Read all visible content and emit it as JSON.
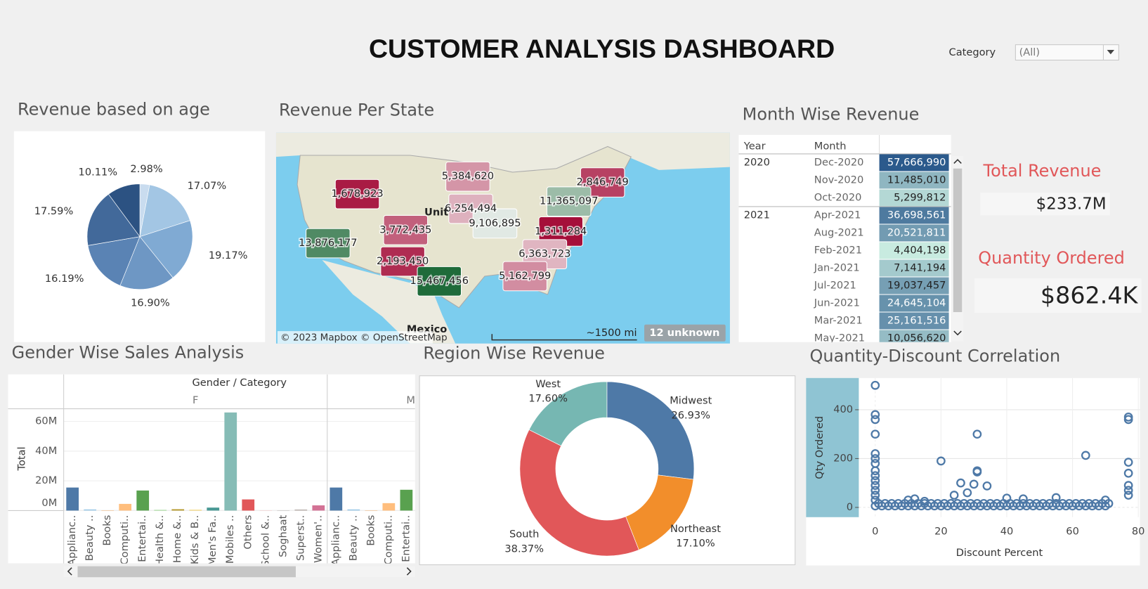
{
  "header": {
    "title": "CUSTOMER ANALYSIS DASHBOARD",
    "filter_label": "Category",
    "filter_value": "(All)"
  },
  "chart_data": [
    {
      "type": "pie",
      "title": "Revenue based on age",
      "values": [
        2.98,
        17.07,
        19.17,
        16.9,
        16.19,
        17.59,
        10.11
      ],
      "value_labels": [
        "2.98%",
        "17.07%",
        "19.17%",
        "16.90%",
        "16.19%",
        "17.59%",
        "10.11%"
      ],
      "colors": [
        "#c9dcef",
        "#a3c6e4",
        "#80aad3",
        "#6e97c4",
        "#5a83b4",
        "#42699a",
        "#2c5282"
      ]
    },
    {
      "type": "map",
      "title": "Revenue Per State",
      "values": [
        5384620,
        1678923,
        2846749,
        11365097,
        6254494,
        9106895,
        13876177,
        3772435,
        1311284,
        6363723,
        2193450,
        15467456,
        5162799
      ],
      "value_labels": [
        "5,384,620",
        "1,678,923",
        "2,846,749",
        "11,365,097",
        "6,254,494",
        "9,106,895",
        "13,876,177",
        "3,772,435",
        "1,311,284",
        "6,363,723",
        "2,193,450",
        "15,467,456",
        "5,162,799"
      ],
      "color_range": [
        "#a50f3a",
        "#f7f7f7",
        "#1f6b3a"
      ],
      "place_labels": [
        "Unit",
        "Mexico"
      ],
      "attribution": "© 2023 Mapbox © OpenStreetMap",
      "scale_label": "~1500 mi",
      "unknown_label": "12 unknown"
    },
    {
      "type": "bar",
      "title": "Gender Wise Sales Analysis",
      "header": "Gender / Category",
      "y_label": "Total",
      "ylim": [
        0,
        68000000
      ],
      "yticks": [
        {
          "value": 0,
          "label": "0M"
        },
        {
          "value": 20000000,
          "label": "20M"
        },
        {
          "value": 40000000,
          "label": "40M"
        },
        {
          "value": 60000000,
          "label": "60M"
        }
      ],
      "grid": true,
      "facets": [
        {
          "name": "F",
          "categories": [
            "Applianc..",
            "Beauty ..",
            "Books",
            "Computi..",
            "Entertai..",
            "Health &..",
            "Home &..",
            "Kids & B..",
            "Men's Fa..",
            "Mobiles ..",
            "Others",
            "School &..",
            "Soghaat",
            "Superst..",
            "Women'.."
          ],
          "values": [
            15500000,
            800000,
            150000,
            4500000,
            13500000,
            400000,
            900000,
            500000,
            2000000,
            66000000,
            7500000,
            100000,
            100000,
            700000,
            3500000
          ],
          "colors": [
            "#4e79a7",
            "#a0cbe8",
            "#f28e2b",
            "#ffbe7d",
            "#59a14f",
            "#8cd17d",
            "#b6992d",
            "#f1ce63",
            "#499894",
            "#86bcb6",
            "#e15759",
            "#ff9d9a",
            "#79706e",
            "#bab0ac",
            "#d37295"
          ]
        },
        {
          "name": "M",
          "categories": [
            "Applianc..",
            "Beauty ..",
            "Books",
            "Computi..",
            "Entertai.."
          ],
          "values": [
            15500000,
            800000,
            150000,
            5000000,
            14000000
          ],
          "colors": [
            "#4e79a7",
            "#a0cbe8",
            "#f28e2b",
            "#ffbe7d",
            "#59a14f"
          ]
        }
      ]
    },
    {
      "type": "donut",
      "title": "Region Wise Revenue",
      "categories": [
        "Midwest",
        "Northeast",
        "South",
        "West"
      ],
      "values": [
        26.93,
        17.1,
        38.37,
        17.6
      ],
      "value_labels": [
        "26.93%",
        "17.10%",
        "38.37%",
        "17.60%"
      ],
      "colors": [
        "#4e79a7",
        "#f28e2b",
        "#e15759",
        "#76b7b2"
      ]
    },
    {
      "type": "scatter",
      "title": "Quantity-Discount Correlation",
      "x_label": "Discount Percent",
      "y_label": "Qty Ordered",
      "x": [
        0,
        0,
        0,
        0,
        0,
        0,
        0,
        0,
        0,
        0,
        0,
        0,
        0,
        0,
        20,
        31,
        31,
        31,
        30,
        34,
        26,
        28,
        24,
        10,
        15,
        64,
        77,
        77,
        77,
        77,
        77,
        77,
        77,
        55,
        45,
        70,
        12,
        40,
        0,
        2,
        4,
        6,
        8,
        10,
        12,
        14,
        16,
        18,
        20,
        22,
        24,
        26,
        28,
        30,
        32,
        34,
        36,
        38,
        40,
        42,
        44,
        46,
        48,
        50,
        52,
        54,
        56,
        58,
        60,
        62,
        64,
        66,
        68,
        70,
        1,
        3,
        5,
        7,
        9,
        11,
        13,
        15,
        17,
        19,
        21,
        23,
        25,
        27,
        29,
        31,
        33,
        35,
        37,
        39,
        41,
        43,
        45,
        47,
        49,
        51,
        53,
        55,
        57,
        59,
        61,
        63,
        65,
        67,
        69,
        71
      ],
      "values": [
        500,
        380,
        360,
        300,
        220,
        200,
        180,
        150,
        130,
        110,
        90,
        70,
        50,
        30,
        190,
        300,
        150,
        145,
        95,
        88,
        100,
        60,
        50,
        30,
        25,
        213,
        370,
        360,
        185,
        140,
        90,
        70,
        50,
        40,
        35,
        30,
        35,
        38,
        6,
        6,
        6,
        6,
        6,
        6,
        6,
        6,
        6,
        6,
        6,
        6,
        6,
        6,
        6,
        6,
        6,
        6,
        6,
        6,
        6,
        6,
        6,
        6,
        6,
        6,
        6,
        6,
        6,
        6,
        6,
        6,
        6,
        6,
        6,
        6,
        16,
        16,
        16,
        16,
        16,
        16,
        16,
        16,
        16,
        16,
        16,
        16,
        16,
        16,
        16,
        16,
        16,
        16,
        16,
        16,
        16,
        16,
        16,
        16,
        16,
        16,
        16,
        16,
        16,
        16,
        16,
        16,
        16,
        16,
        16,
        16
      ],
      "xlim": [
        -5,
        80.5
      ],
      "ylim": [
        -40,
        530
      ],
      "xticks": [
        0,
        20,
        40,
        60,
        80
      ],
      "yticks": [
        0,
        200,
        400
      ],
      "color": "#4e79a7",
      "grid": true
    }
  ],
  "month_table": {
    "title": "Month Wise Revenue",
    "columns": [
      "Year",
      "Month"
    ],
    "groups": [
      {
        "year": "2020",
        "rows": [
          [
            "Dec-2020",
            "57,666,990"
          ],
          [
            "Nov-2020",
            "11,485,010"
          ],
          [
            "Oct-2020",
            "5,299,812"
          ]
        ]
      },
      {
        "year": "2021",
        "rows": [
          [
            "Apr-2021",
            "36,698,561"
          ],
          [
            "Aug-2021",
            "20,521,811"
          ],
          [
            "Feb-2021",
            "4,404,198"
          ],
          [
            "Jan-2021",
            "7,141,194"
          ],
          [
            "Jul-2021",
            "19,037,457"
          ],
          [
            "Jun-2021",
            "24,645,104"
          ],
          [
            "Mar-2021",
            "25,161,516"
          ],
          [
            "May-2021",
            "10,056,620"
          ]
        ]
      }
    ]
  },
  "kpis": [
    {
      "label": "Total Revenue",
      "value": "$233.7M"
    },
    {
      "label": "Quantity Ordered",
      "value": "$862.4K"
    }
  ]
}
